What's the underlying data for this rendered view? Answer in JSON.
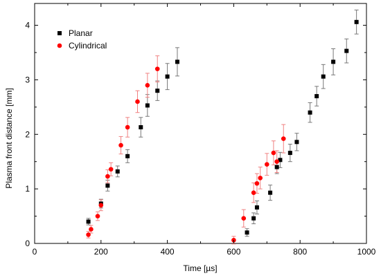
{
  "chart_data": {
    "type": "scatter",
    "xlabel": "Time [µs]",
    "ylabel": "Plasma front distance [mm]",
    "xlim": [
      0,
      1000
    ],
    "ylim": [
      0,
      4.4
    ],
    "xticks": [
      "0",
      "200",
      "400",
      "600",
      "800",
      "1000"
    ],
    "yticks": [
      "0",
      "1",
      "2",
      "3",
      "4"
    ],
    "grid": false,
    "legend_position": "top-left",
    "series": [
      {
        "name": "Planar",
        "color": "#000000",
        "marker": "square",
        "error_color": "#777777",
        "points": [
          {
            "x": 162,
            "y": 0.4,
            "err": 0.06
          },
          {
            "x": 200,
            "y": 0.73,
            "err": 0.08
          },
          {
            "x": 220,
            "y": 1.06,
            "err": 0.1
          },
          {
            "x": 250,
            "y": 1.32,
            "err": 0.1
          },
          {
            "x": 280,
            "y": 1.6,
            "err": 0.12
          },
          {
            "x": 320,
            "y": 2.13,
            "err": 0.18
          },
          {
            "x": 340,
            "y": 2.53,
            "err": 0.2
          },
          {
            "x": 370,
            "y": 2.8,
            "err": 0.18
          },
          {
            "x": 400,
            "y": 3.06,
            "err": 0.24
          },
          {
            "x": 430,
            "y": 3.33,
            "err": 0.26
          },
          {
            "x": 640,
            "y": 0.2,
            "err": 0.07
          },
          {
            "x": 660,
            "y": 0.46,
            "err": 0.1
          },
          {
            "x": 670,
            "y": 0.66,
            "err": 0.12
          },
          {
            "x": 710,
            "y": 0.93,
            "err": 0.14
          },
          {
            "x": 730,
            "y": 1.4,
            "err": 0.12
          },
          {
            "x": 740,
            "y": 1.53,
            "err": 0.14
          },
          {
            "x": 770,
            "y": 1.66,
            "err": 0.16
          },
          {
            "x": 790,
            "y": 1.86,
            "err": 0.16
          },
          {
            "x": 830,
            "y": 2.4,
            "err": 0.18
          },
          {
            "x": 850,
            "y": 2.7,
            "err": 0.18
          },
          {
            "x": 870,
            "y": 3.06,
            "err": 0.22
          },
          {
            "x": 900,
            "y": 3.33,
            "err": 0.24
          },
          {
            "x": 940,
            "y": 3.53,
            "err": 0.22
          },
          {
            "x": 970,
            "y": 4.06,
            "err": 0.22
          }
        ]
      },
      {
        "name": "Cylindrical",
        "color": "#ff0000",
        "marker": "circle",
        "error_color": "#f08080",
        "points": [
          {
            "x": 162,
            "y": 0.16,
            "err": 0.06
          },
          {
            "x": 170,
            "y": 0.26,
            "err": 0.07
          },
          {
            "x": 190,
            "y": 0.5,
            "err": 0.08
          },
          {
            "x": 200,
            "y": 0.7,
            "err": 0.1
          },
          {
            "x": 220,
            "y": 1.23,
            "err": 0.12
          },
          {
            "x": 230,
            "y": 1.36,
            "err": 0.12
          },
          {
            "x": 260,
            "y": 1.8,
            "err": 0.16
          },
          {
            "x": 280,
            "y": 2.13,
            "err": 0.18
          },
          {
            "x": 310,
            "y": 2.6,
            "err": 0.2
          },
          {
            "x": 340,
            "y": 2.9,
            "err": 0.22
          },
          {
            "x": 370,
            "y": 3.2,
            "err": 0.24
          },
          {
            "x": 600,
            "y": 0.06,
            "err": 0.07
          },
          {
            "x": 630,
            "y": 0.46,
            "err": 0.16
          },
          {
            "x": 660,
            "y": 0.93,
            "err": 0.18
          },
          {
            "x": 670,
            "y": 1.1,
            "err": 0.18
          },
          {
            "x": 680,
            "y": 1.2,
            "err": 0.2
          },
          {
            "x": 700,
            "y": 1.45,
            "err": 0.2
          },
          {
            "x": 720,
            "y": 1.66,
            "err": 0.22
          },
          {
            "x": 730,
            "y": 1.5,
            "err": 0.2
          },
          {
            "x": 750,
            "y": 1.92,
            "err": 0.26
          }
        ]
      }
    ]
  }
}
